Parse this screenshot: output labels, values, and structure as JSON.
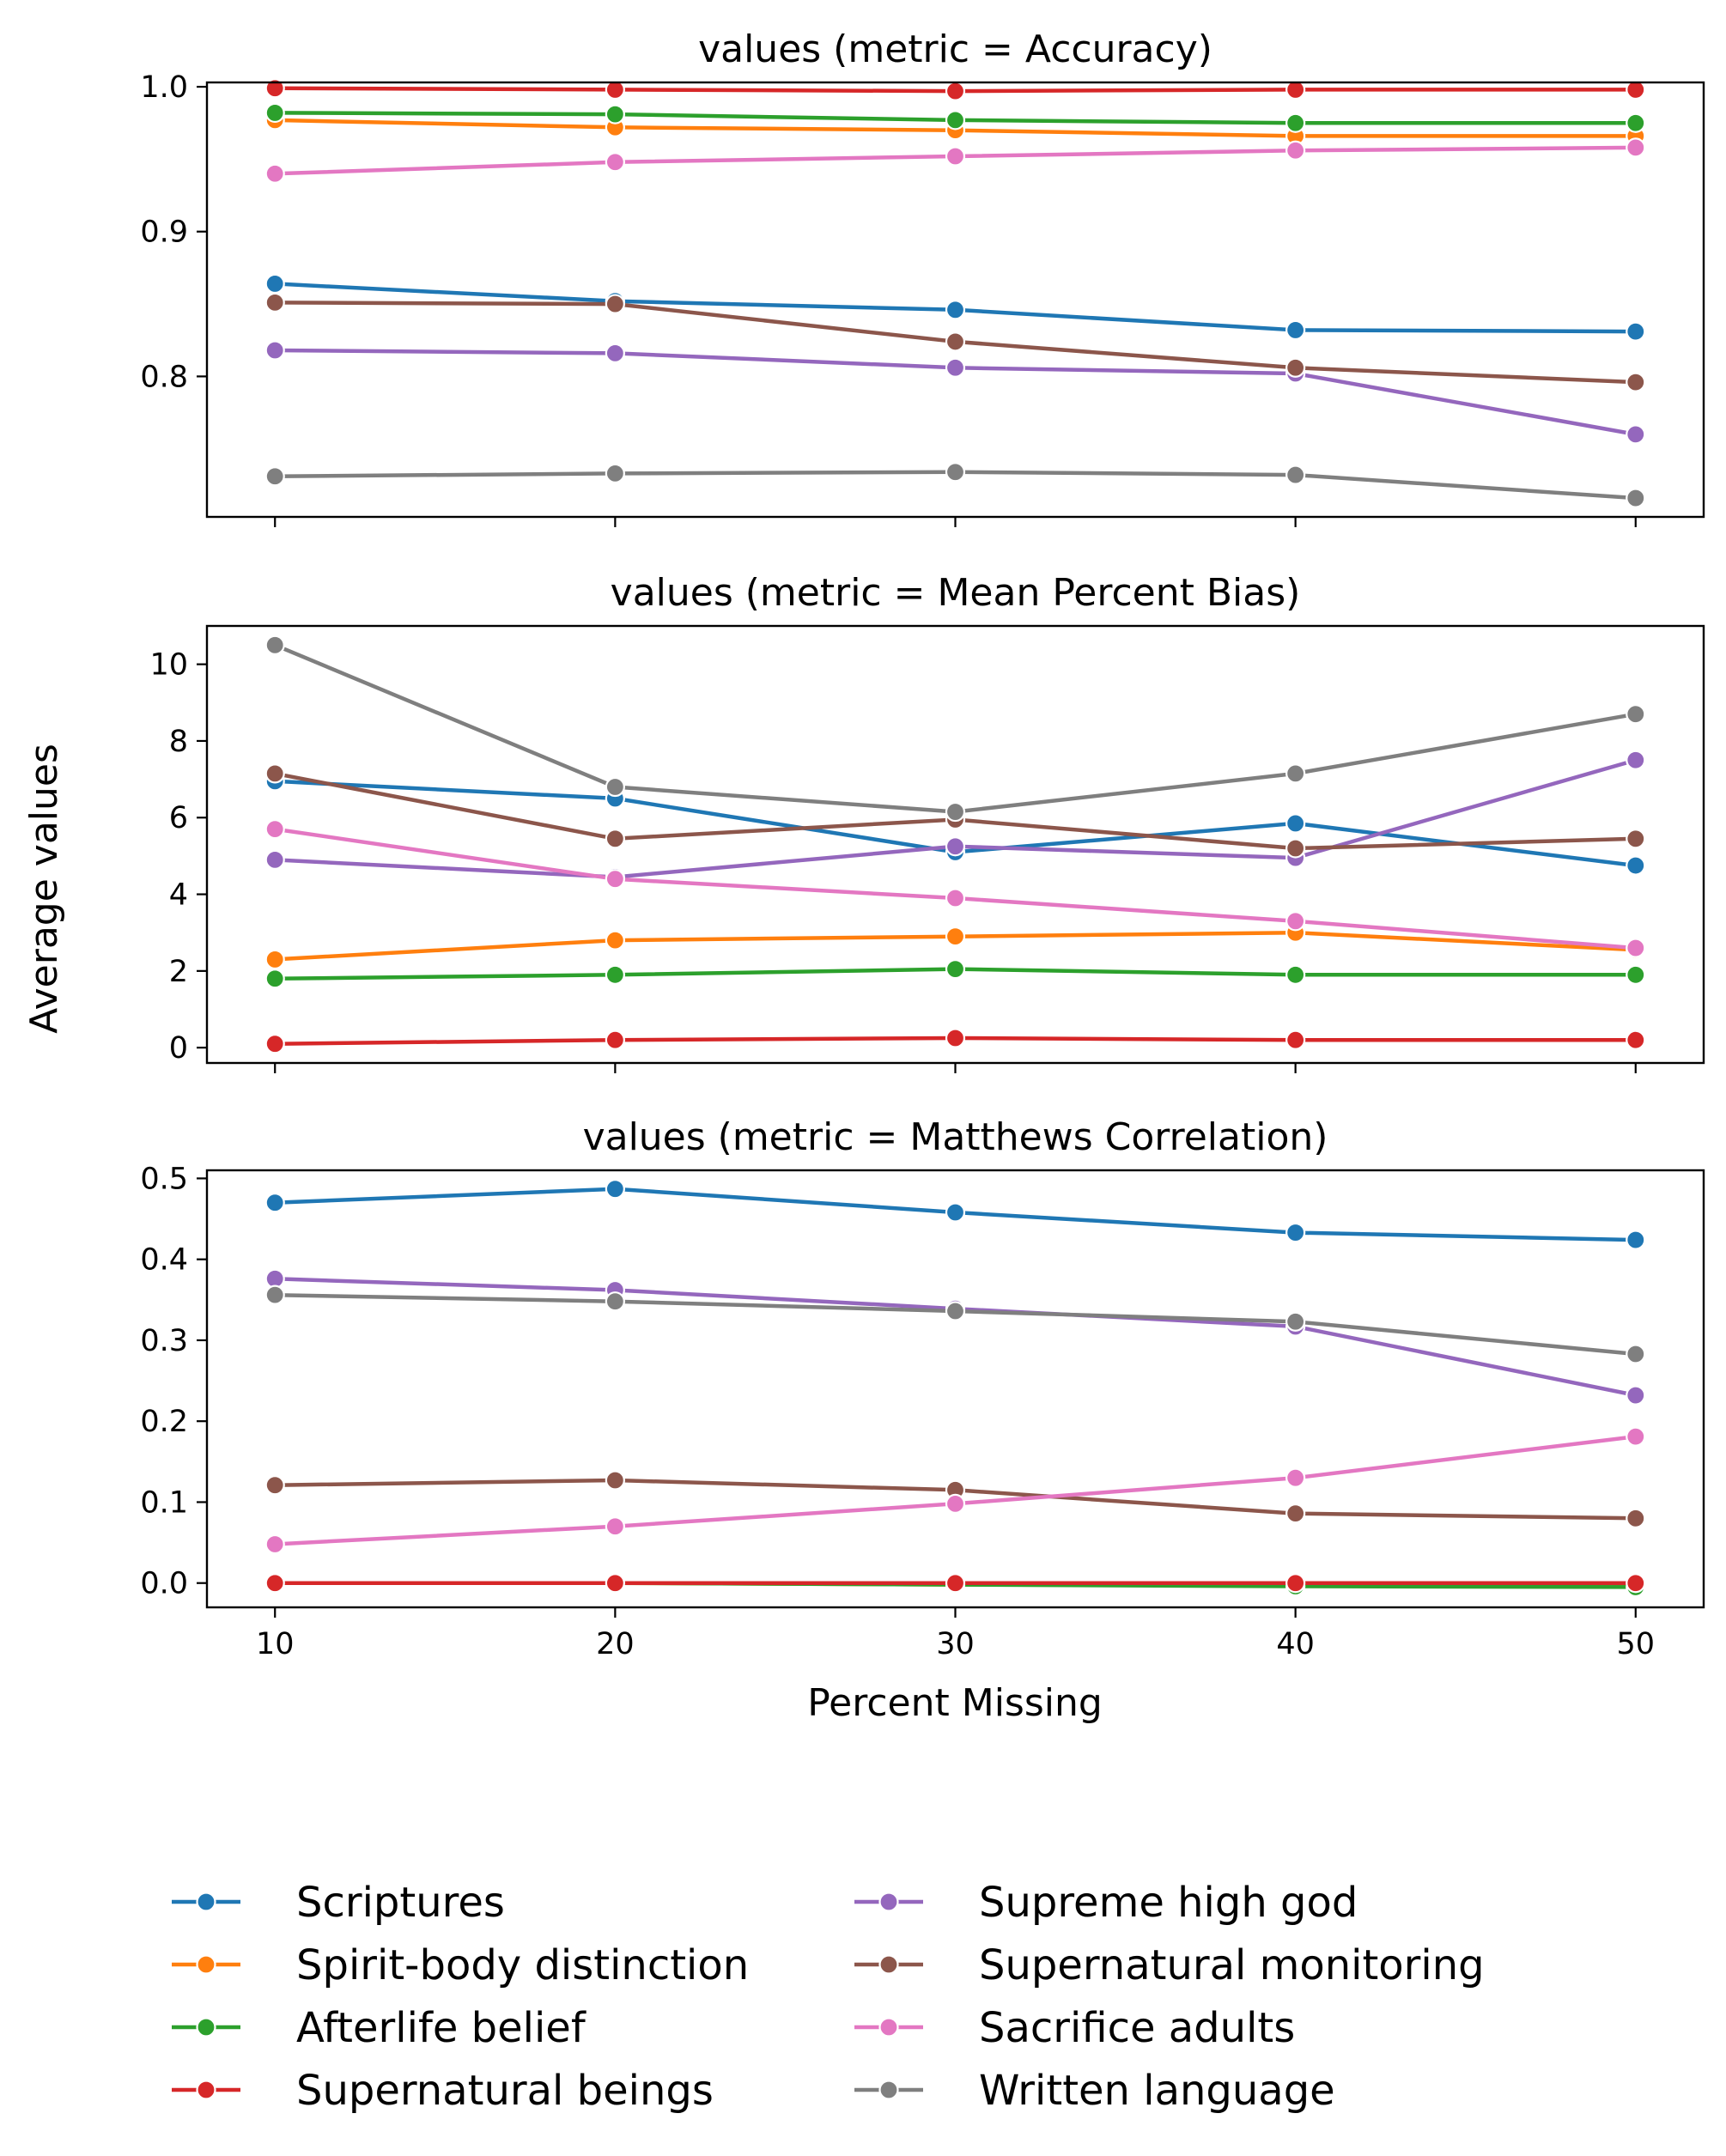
{
  "figure": {
    "shared_ylabel": "Average values",
    "shared_xlabel": "Percent Missing"
  },
  "colors": {
    "Scriptures": "#1f77b4",
    "Spirit-body distinction": "#ff7f0e",
    "Afterlife belief": "#2ca02c",
    "Supernatural beings": "#d62728",
    "Supreme high god": "#9467bd",
    "Supernatural monitoring": "#8c564b",
    "Sacrifice adults": "#e377c2",
    "Written language": "#7f7f7f"
  },
  "legend": {
    "placement": "bottom, two columns",
    "entries": [
      "Scriptures",
      "Spirit-body distinction",
      "Afterlife belief",
      "Supernatural beings",
      "Supreme high god",
      "Supernatural monitoring",
      "Sacrifice adults",
      "Written language"
    ]
  },
  "chart_data": [
    {
      "type": "line",
      "title": "values (metric = Accuracy)",
      "xlabel": "",
      "ylabel": "",
      "x": [
        10,
        20,
        30,
        40,
        50
      ],
      "xlim": [
        8,
        52
      ],
      "ylim": [
        0.703,
        1.003
      ],
      "yticks": [
        0.8,
        0.9,
        1.0
      ],
      "ytick_labels": [
        "0.8",
        "0.9",
        "1.0"
      ],
      "xticks": [
        10,
        20,
        30,
        40,
        50
      ],
      "show_xtick_labels": false,
      "grid": false,
      "series": [
        {
          "name": "Scriptures",
          "values": [
            0.864,
            0.852,
            0.846,
            0.832,
            0.831
          ]
        },
        {
          "name": "Spirit-body distinction",
          "values": [
            0.977,
            0.972,
            0.97,
            0.966,
            0.966
          ]
        },
        {
          "name": "Afterlife belief",
          "values": [
            0.982,
            0.981,
            0.977,
            0.975,
            0.975
          ]
        },
        {
          "name": "Supernatural beings",
          "values": [
            0.999,
            0.998,
            0.997,
            0.998,
            0.998
          ]
        },
        {
          "name": "Supreme high god",
          "values": [
            0.818,
            0.816,
            0.806,
            0.802,
            0.76
          ]
        },
        {
          "name": "Supernatural monitoring",
          "values": [
            0.851,
            0.85,
            0.824,
            0.806,
            0.796
          ]
        },
        {
          "name": "Sacrifice adults",
          "values": [
            0.94,
            0.948,
            0.952,
            0.956,
            0.958
          ]
        },
        {
          "name": "Written language",
          "values": [
            0.731,
            0.733,
            0.734,
            0.732,
            0.716
          ]
        }
      ]
    },
    {
      "type": "line",
      "title": "values (metric = Mean Percent Bias)",
      "xlabel": "",
      "ylabel": "",
      "x": [
        10,
        20,
        30,
        40,
        50
      ],
      "xlim": [
        8,
        52
      ],
      "ylim": [
        -0.4,
        11.0
      ],
      "yticks": [
        0,
        2,
        4,
        6,
        8,
        10
      ],
      "ytick_labels": [
        "0",
        "2",
        "4",
        "6",
        "8",
        "10"
      ],
      "xticks": [
        10,
        20,
        30,
        40,
        50
      ],
      "show_xtick_labels": false,
      "grid": false,
      "series": [
        {
          "name": "Scriptures",
          "values": [
            6.95,
            6.5,
            5.1,
            5.85,
            4.75
          ]
        },
        {
          "name": "Spirit-body distinction",
          "values": [
            2.3,
            2.8,
            2.9,
            3.0,
            2.55
          ]
        },
        {
          "name": "Afterlife belief",
          "values": [
            1.8,
            1.9,
            2.05,
            1.9,
            1.9
          ]
        },
        {
          "name": "Supernatural beings",
          "values": [
            0.1,
            0.2,
            0.25,
            0.2,
            0.2
          ]
        },
        {
          "name": "Supreme high god",
          "values": [
            4.9,
            4.45,
            5.25,
            4.95,
            7.5
          ]
        },
        {
          "name": "Supernatural monitoring",
          "values": [
            7.15,
            5.45,
            5.95,
            5.2,
            5.45
          ]
        },
        {
          "name": "Sacrifice adults",
          "values": [
            5.7,
            4.4,
            3.9,
            3.3,
            2.6
          ]
        },
        {
          "name": "Written language",
          "values": [
            10.5,
            6.8,
            6.15,
            7.15,
            8.7
          ]
        }
      ]
    },
    {
      "type": "line",
      "title": "values (metric = Matthews Correlation)",
      "xlabel": "Percent Missing",
      "ylabel": "",
      "x": [
        10,
        20,
        30,
        40,
        50
      ],
      "xlim": [
        8,
        52
      ],
      "ylim": [
        -0.03,
        0.51
      ],
      "yticks": [
        0.0,
        0.1,
        0.2,
        0.3,
        0.4,
        0.5
      ],
      "ytick_labels": [
        "0.0",
        "0.1",
        "0.2",
        "0.3",
        "0.4",
        "0.5"
      ],
      "xticks": [
        10,
        20,
        30,
        40,
        50
      ],
      "xtick_labels": [
        "10",
        "20",
        "30",
        "40",
        "50"
      ],
      "show_xtick_labels": true,
      "grid": false,
      "series": [
        {
          "name": "Scriptures",
          "values": [
            0.47,
            0.487,
            0.458,
            0.433,
            0.424
          ]
        },
        {
          "name": "Spirit-body distinction",
          "values": [
            0.0,
            0.0,
            -0.002,
            -0.003,
            -0.003
          ]
        },
        {
          "name": "Afterlife belief",
          "values": [
            0.0,
            0.0,
            -0.002,
            -0.004,
            -0.005
          ]
        },
        {
          "name": "Supernatural beings",
          "values": [
            0.0,
            0.0,
            0.0,
            0.0,
            0.0
          ]
        },
        {
          "name": "Supreme high god",
          "values": [
            0.376,
            0.362,
            0.339,
            0.317,
            0.232
          ]
        },
        {
          "name": "Supernatural monitoring",
          "values": [
            0.121,
            0.127,
            0.115,
            0.086,
            0.08
          ]
        },
        {
          "name": "Sacrifice adults",
          "values": [
            0.048,
            0.07,
            0.098,
            0.13,
            0.181
          ]
        },
        {
          "name": "Written language",
          "values": [
            0.356,
            0.348,
            0.336,
            0.323,
            0.283
          ]
        }
      ]
    }
  ]
}
